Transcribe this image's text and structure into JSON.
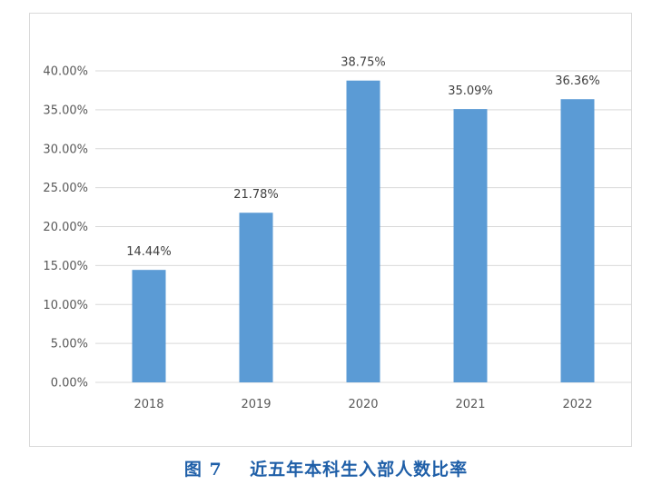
{
  "caption": "图 7    近五年本科生入部人数比率",
  "chart_data": {
    "type": "bar",
    "categories": [
      "2018",
      "2019",
      "2020",
      "2021",
      "2022"
    ],
    "series": [
      {
        "values": [
          14.44,
          21.78,
          38.75,
          35.09,
          36.36
        ],
        "color": "#5b9bd5"
      }
    ],
    "data_labels": [
      "14.44%",
      "21.78%",
      "38.75%",
      "35.09%",
      "36.36%"
    ],
    "y_ticks": [
      0,
      5,
      10,
      15,
      20,
      25,
      30,
      35,
      40
    ],
    "y_tick_labels": [
      "0.00%",
      "5.00%",
      "10.00%",
      "15.00%",
      "20.00%",
      "25.00%",
      "30.00%",
      "35.00%",
      "40.00%"
    ],
    "ylim": [
      0,
      40
    ],
    "grid": true,
    "legend": "none",
    "gridline_color": "#d9d9d9",
    "caption_color": "#1f5fa8"
  }
}
